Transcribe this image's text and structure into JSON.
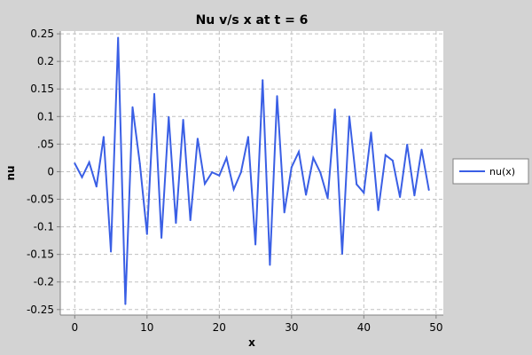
{
  "chart_data": {
    "type": "line",
    "title": "Nu v/s x at t = 6",
    "xlabel": "x",
    "ylabel": "nu",
    "xlim": [
      -2,
      51
    ],
    "ylim": [
      -0.26,
      0.255
    ],
    "xticks": [
      0,
      10,
      20,
      30,
      40,
      50
    ],
    "yticks": [
      -0.25,
      -0.2,
      -0.15,
      -0.1,
      -0.05,
      0,
      0.05,
      0.1,
      0.15,
      0.2,
      0.25
    ],
    "xtick_labels": [
      "0",
      "10",
      "20",
      "30",
      "40",
      "50"
    ],
    "ytick_labels": [
      "-0.25",
      "-0.2",
      "-0.15",
      "-0.1",
      "-0.05",
      "0",
      ".05",
      "0.1",
      "0.15",
      "0.2",
      "0.25"
    ],
    "grid": true,
    "legend_position": "right",
    "series": [
      {
        "name": "nu(x)",
        "color": "#3a5fe5",
        "x": [
          0,
          1,
          2,
          3,
          4,
          5,
          6,
          7,
          8,
          9,
          10,
          11,
          12,
          13,
          14,
          15,
          16,
          17,
          18,
          19,
          20,
          21,
          22,
          23,
          24,
          25,
          26,
          27,
          28,
          29,
          30,
          31,
          32,
          33,
          34,
          35,
          36,
          37,
          38,
          39,
          40,
          41,
          42,
          43,
          44,
          45,
          46,
          47,
          48,
          49
        ],
        "y": [
          0.015,
          -0.01,
          0.017,
          -0.027,
          0.063,
          -0.145,
          0.243,
          -0.24,
          0.117,
          0.015,
          -0.113,
          0.141,
          -0.12,
          0.099,
          -0.093,
          0.094,
          -0.088,
          0.06,
          -0.022,
          -0.001,
          -0.007,
          0.025,
          -0.032,
          -0.001,
          0.063,
          -0.132,
          0.166,
          -0.169,
          0.137,
          -0.074,
          0.008,
          0.036,
          -0.042,
          0.025,
          -0.002,
          -0.048,
          0.113,
          -0.149,
          0.1,
          -0.023,
          -0.038,
          0.071,
          -0.07,
          0.03,
          0.02,
          -0.046,
          0.049,
          -0.043,
          0.04,
          -0.033
        ]
      }
    ]
  }
}
